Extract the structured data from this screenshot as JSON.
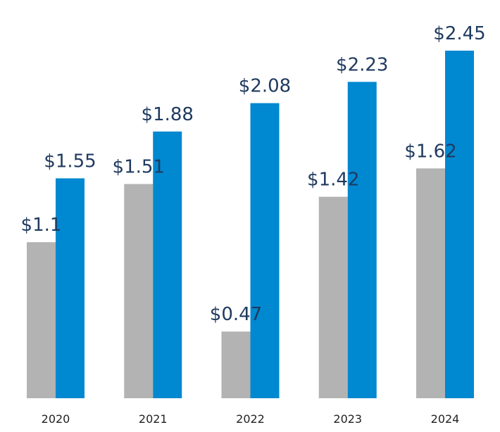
{
  "chart_data": {
    "type": "bar",
    "title": "",
    "xlabel": "",
    "ylabel": "",
    "categories": [
      "2020",
      "2021",
      "2022",
      "2023",
      "2024"
    ],
    "series": [
      {
        "values": [
          1.1,
          1.51,
          0.47,
          1.42,
          1.62
        ],
        "labels": [
          "$1.1",
          "$1.51",
          "$0.47",
          "$1.42",
          "$1.62"
        ],
        "color": "#b3b3b3"
      },
      {
        "values": [
          1.55,
          1.88,
          2.08,
          2.23,
          2.45
        ],
        "labels": [
          "$1.55",
          "$1.88",
          "$2.08",
          "$2.23",
          "$2.45"
        ],
        "color": "#0088d1"
      }
    ],
    "ylim": [
      0,
      2.45
    ],
    "grid": false,
    "legend": "none",
    "data_labels": true
  }
}
